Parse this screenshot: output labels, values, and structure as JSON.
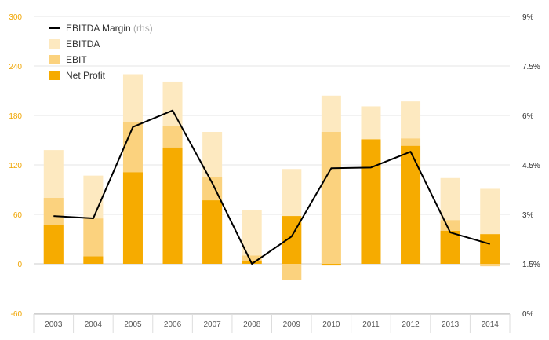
{
  "chart_data": {
    "type": "bar",
    "categories": [
      "2003",
      "2004",
      "2005",
      "2006",
      "2007",
      "2008",
      "2009",
      "2010",
      "2011",
      "2012",
      "2013",
      "2014"
    ],
    "series": [
      {
        "name": "EBITDA",
        "values": [
          138,
          107,
          230,
          221,
          160,
          65,
          115,
          204,
          191,
          197,
          104,
          91
        ],
        "color": "#fde9c0"
      },
      {
        "name": "EBIT",
        "values": [
          80,
          55,
          172,
          167,
          105,
          10,
          -20,
          160,
          150,
          152,
          53,
          -3
        ],
        "color": "#fbd27e"
      },
      {
        "name": "Net Profit",
        "values": [
          47,
          9,
          111,
          141,
          77,
          3,
          58,
          -2,
          151,
          143,
          40,
          36
        ],
        "color": "#f6ab00"
      }
    ],
    "line_series": {
      "name": "EBITDA Margin",
      "note": "(rhs)",
      "values": [
        2.95,
        2.88,
        5.65,
        6.15,
        3.95,
        1.5,
        2.33,
        4.4,
        4.42,
        4.9,
        2.45,
        2.1
      ],
      "color": "#000000"
    },
    "ylim": [
      -60,
      300
    ],
    "yticks": [
      -60,
      0,
      60,
      120,
      180,
      240,
      300
    ],
    "y2lim": [
      0,
      9
    ],
    "y2ticks": [
      "0%",
      "1.5%",
      "3%",
      "4.5%",
      "6%",
      "7.5%",
      "9%"
    ],
    "left_tick_color": "#f0a500",
    "grid": "horizontal",
    "legend_position": "top-left",
    "title": "",
    "xlabel": "",
    "ylabel": ""
  }
}
